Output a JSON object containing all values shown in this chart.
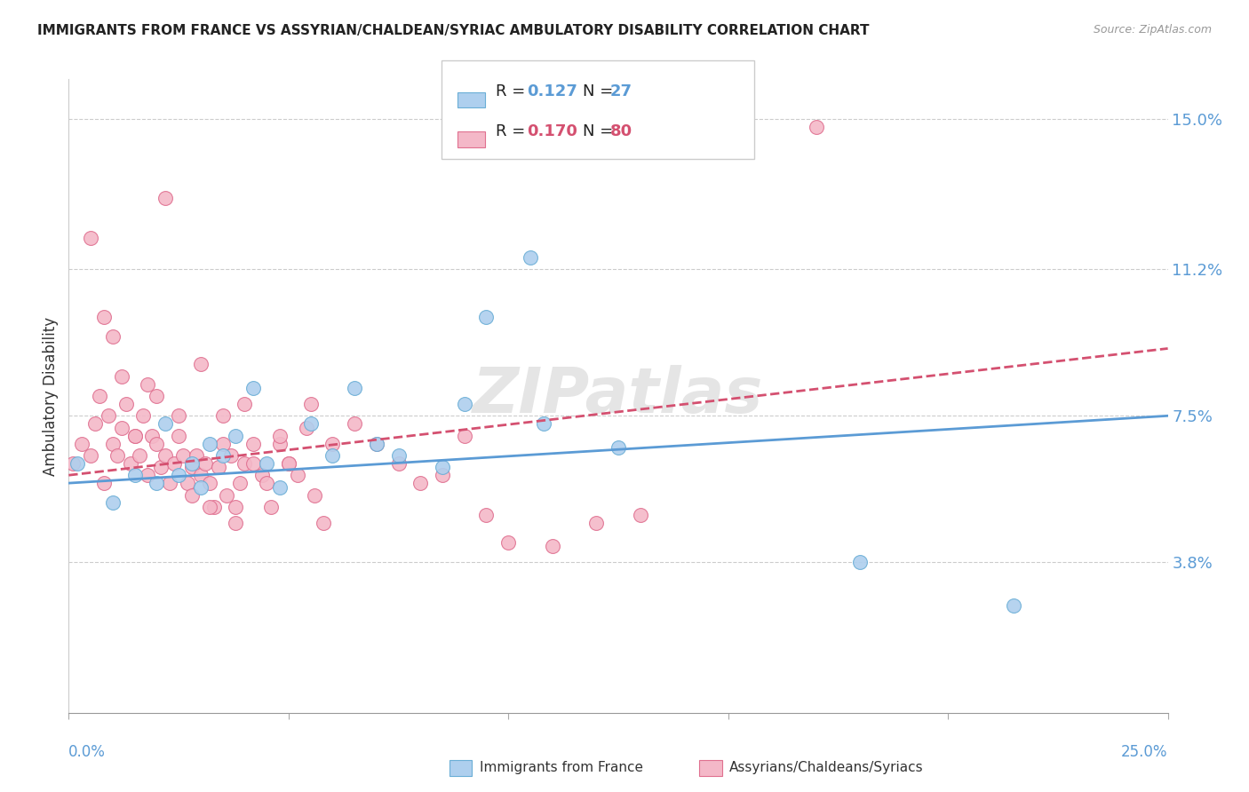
{
  "title": "IMMIGRANTS FROM FRANCE VS ASSYRIAN/CHALDEAN/SYRIAC AMBULATORY DISABILITY CORRELATION CHART",
  "source": "Source: ZipAtlas.com",
  "ylabel": "Ambulatory Disability",
  "xlim": [
    0.0,
    0.25
  ],
  "ylim": [
    0.0,
    0.16
  ],
  "yticks": [
    0.038,
    0.075,
    0.112,
    0.15
  ],
  "ytick_labels": [
    "3.8%",
    "7.5%",
    "11.2%",
    "15.0%"
  ],
  "color_blue": "#aecfee",
  "color_blue_edge": "#6aaed6",
  "color_blue_line": "#5b9bd5",
  "color_pink": "#f4b8c8",
  "color_pink_edge": "#e07090",
  "color_pink_line": "#d45070",
  "watermark": "ZIPatlas",
  "blue_scatter_x": [
    0.002,
    0.01,
    0.015,
    0.02,
    0.022,
    0.025,
    0.028,
    0.03,
    0.032,
    0.035,
    0.038,
    0.042,
    0.045,
    0.048,
    0.055,
    0.06,
    0.065,
    0.07,
    0.075,
    0.085,
    0.09,
    0.095,
    0.105,
    0.108,
    0.125,
    0.18,
    0.215
  ],
  "blue_scatter_y": [
    0.063,
    0.053,
    0.06,
    0.058,
    0.073,
    0.06,
    0.063,
    0.057,
    0.068,
    0.065,
    0.07,
    0.082,
    0.063,
    0.057,
    0.073,
    0.065,
    0.082,
    0.068,
    0.065,
    0.062,
    0.078,
    0.1,
    0.115,
    0.073,
    0.067,
    0.038,
    0.027
  ],
  "pink_scatter_x": [
    0.001,
    0.003,
    0.005,
    0.006,
    0.007,
    0.008,
    0.009,
    0.01,
    0.011,
    0.012,
    0.013,
    0.014,
    0.015,
    0.016,
    0.017,
    0.018,
    0.019,
    0.02,
    0.021,
    0.022,
    0.023,
    0.024,
    0.025,
    0.026,
    0.027,
    0.028,
    0.029,
    0.03,
    0.031,
    0.032,
    0.033,
    0.034,
    0.035,
    0.036,
    0.037,
    0.038,
    0.039,
    0.04,
    0.042,
    0.044,
    0.046,
    0.048,
    0.05,
    0.052,
    0.054,
    0.056,
    0.058,
    0.06,
    0.065,
    0.07,
    0.075,
    0.08,
    0.085,
    0.09,
    0.095,
    0.1,
    0.11,
    0.12,
    0.13,
    0.17,
    0.005,
    0.008,
    0.01,
    0.012,
    0.015,
    0.018,
    0.02,
    0.022,
    0.025,
    0.028,
    0.03,
    0.032,
    0.035,
    0.038,
    0.04,
    0.042,
    0.045,
    0.048,
    0.05,
    0.055
  ],
  "pink_scatter_y": [
    0.063,
    0.068,
    0.065,
    0.073,
    0.08,
    0.058,
    0.075,
    0.068,
    0.065,
    0.072,
    0.078,
    0.063,
    0.07,
    0.065,
    0.075,
    0.06,
    0.07,
    0.068,
    0.062,
    0.065,
    0.058,
    0.063,
    0.07,
    0.065,
    0.058,
    0.062,
    0.065,
    0.06,
    0.063,
    0.058,
    0.052,
    0.062,
    0.068,
    0.055,
    0.065,
    0.052,
    0.058,
    0.063,
    0.068,
    0.06,
    0.052,
    0.068,
    0.063,
    0.06,
    0.072,
    0.055,
    0.048,
    0.068,
    0.073,
    0.068,
    0.063,
    0.058,
    0.06,
    0.07,
    0.05,
    0.043,
    0.042,
    0.048,
    0.05,
    0.148,
    0.12,
    0.1,
    0.095,
    0.085,
    0.07,
    0.083,
    0.08,
    0.13,
    0.075,
    0.055,
    0.088,
    0.052,
    0.075,
    0.048,
    0.078,
    0.063,
    0.058,
    0.07,
    0.063,
    0.078
  ],
  "blue_line_x0": 0.0,
  "blue_line_x1": 0.25,
  "blue_line_y0": 0.058,
  "blue_line_y1": 0.075,
  "pink_line_x0": 0.0,
  "pink_line_x1": 0.25,
  "pink_line_y0": 0.06,
  "pink_line_y1": 0.092
}
